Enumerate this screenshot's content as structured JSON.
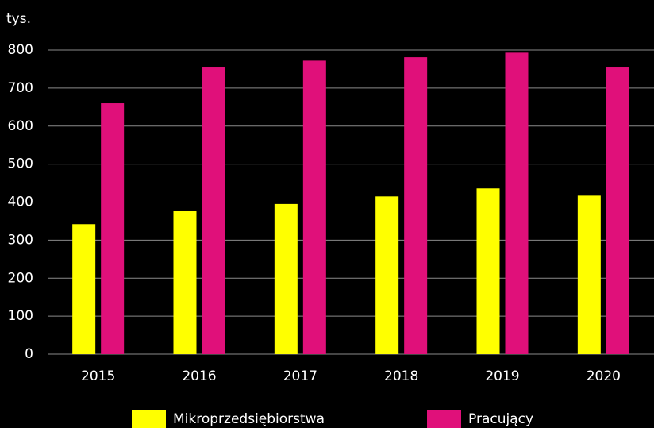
{
  "chart_data": {
    "type": "bar",
    "y_label": "tys.",
    "categories": [
      "2015",
      "2016",
      "2017",
      "2018",
      "2019",
      "2020"
    ],
    "series": [
      {
        "name": "Mikroprzedsiębiorstwa",
        "color": "#ffff00",
        "values": [
          342,
          376,
          395,
          415,
          436,
          417
        ]
      },
      {
        "name": "Pracujący",
        "color": "#e0107a",
        "values": [
          660,
          754,
          772,
          781,
          793,
          754
        ]
      }
    ],
    "ylim": [
      0,
      800
    ],
    "yticks": [
      0,
      100,
      200,
      300,
      400,
      500,
      600,
      700,
      800
    ],
    "grid": true
  }
}
